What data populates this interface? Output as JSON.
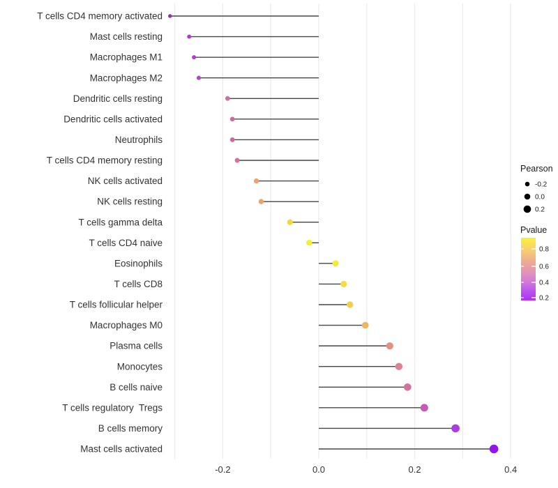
{
  "chart_data": {
    "type": "scatter",
    "subtype": "lollipop",
    "orientation": "horizontal",
    "title": "",
    "xlabel": "",
    "ylabel": "",
    "x_axis": {
      "tick_labels": [
        "-0.2",
        "0.0",
        "0.2",
        "0.4"
      ],
      "tick_values": [
        -0.2,
        0.0,
        0.2,
        0.4
      ],
      "gridline_values": [
        -0.3,
        -0.2,
        -0.1,
        0.0,
        0.1,
        0.2,
        0.3,
        0.4
      ],
      "range": [
        -0.34,
        0.42
      ]
    },
    "baseline_value": 0.0,
    "points": [
      {
        "label": "T cells CD4 memory activated",
        "pearson": -0.31,
        "color": "#8a35ae"
      },
      {
        "label": "Mast cells resting",
        "pearson": -0.27,
        "color": "#a83fc4"
      },
      {
        "label": "Macrophages M1",
        "pearson": -0.26,
        "color": "#ab43c6"
      },
      {
        "label": "Macrophages M2",
        "pearson": -0.25,
        "color": "#ad47c5"
      },
      {
        "label": "Dendritic cells resting",
        "pearson": -0.19,
        "color": "#cf6d9f"
      },
      {
        "label": "Dendritic cells activated",
        "pearson": -0.18,
        "color": "#cf6c9d"
      },
      {
        "label": "Neutrophils",
        "pearson": -0.18,
        "color": "#ce6a9b"
      },
      {
        "label": "T cells CD4 memory resting",
        "pearson": -0.17,
        "color": "#d2729e"
      },
      {
        "label": "NK cells activated",
        "pearson": -0.13,
        "color": "#eaa277"
      },
      {
        "label": "NK cells resting",
        "pearson": -0.12,
        "color": "#e9a46d"
      },
      {
        "label": "T cells gamma delta",
        "pearson": -0.06,
        "color": "#f2d83f"
      },
      {
        "label": "T cells CD4 naive",
        "pearson": -0.02,
        "color": "#f9ef31"
      },
      {
        "label": "Eosinophils",
        "pearson": 0.035,
        "color": "#f7e93a"
      },
      {
        "label": "T cells CD8",
        "pearson": 0.052,
        "color": "#f5dd40"
      },
      {
        "label": "T cells follicular helper",
        "pearson": 0.065,
        "color": "#f2cf4b"
      },
      {
        "label": "Macrophages M0",
        "pearson": 0.097,
        "color": "#edb761"
      },
      {
        "label": "Plasma cells",
        "pearson": 0.148,
        "color": "#e29183"
      },
      {
        "label": "Monocytes",
        "pearson": 0.167,
        "color": "#dc8397"
      },
      {
        "label": "B cells naive",
        "pearson": 0.185,
        "color": "#d3729f"
      },
      {
        "label": "T cells regulatory  Tregs",
        "pearson": 0.22,
        "color": "#c75ab9"
      },
      {
        "label": "B cells memory",
        "pearson": 0.285,
        "color": "#a93ce2"
      },
      {
        "label": "Mast cells activated",
        "pearson": 0.365,
        "color": "#9414ee"
      }
    ],
    "legend": {
      "pearson": {
        "title": "Pearson",
        "entries": [
          {
            "label": "-0.2",
            "dot_radius": 3.3
          },
          {
            "label": "0.0",
            "dot_radius": 4.3
          },
          {
            "label": "0.2",
            "dot_radius": 5.3
          }
        ],
        "dot_color": "#000000"
      },
      "pvalue": {
        "title": "Pvalue",
        "tick_labels": [
          "0.8",
          "0.6",
          "0.4",
          "0.2"
        ],
        "gradient_top_to_bottom": [
          "#f9f139",
          "#f6ce70",
          "#eda795",
          "#e393b8",
          "#d57ad8",
          "#bc53f0",
          "#ab2ff9"
        ]
      }
    },
    "colors": {
      "segment": "#454545",
      "gridline": "#ebebeb",
      "axis_text": "#333333",
      "legend_text": "#1a1a1a"
    },
    "grid": "vertical-only",
    "legend_position": "right"
  }
}
